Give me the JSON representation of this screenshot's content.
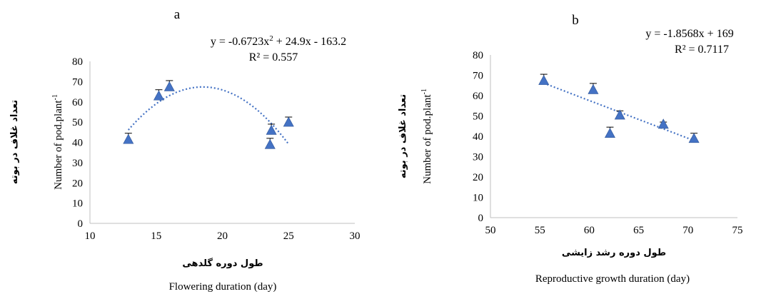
{
  "chart_data": [
    {
      "type": "scatter",
      "panel_label": "a",
      "equation": "y = -0.6723x",
      "equation_sup": "2",
      "equation_tail": " + 24.9x - 163.2",
      "r2": "R² = 0.557",
      "xlabel_fa": "طول دوره گلدهی",
      "xlabel": "Flowering duration (day)",
      "ylabel_fa": "تعداد غلاف در بوته",
      "ylabel": "Number of pod.plant",
      "ylabel_sup": "-1",
      "xlim": [
        10,
        30
      ],
      "ylim": [
        0,
        80
      ],
      "xticks": [
        "10",
        "15",
        "20",
        "25",
        "30"
      ],
      "yticks": [
        "0",
        "10",
        "20",
        "30",
        "40",
        "50",
        "60",
        "70",
        "80"
      ],
      "trendline": {
        "type": "polynomial",
        "a": -0.6723,
        "b": 24.9,
        "c": -163.2,
        "x_from": 12.9,
        "x_to": 25.0
      },
      "points": [
        {
          "x": 12.9,
          "y": 41.5,
          "err": 3
        },
        {
          "x": 15.2,
          "y": 63,
          "err": 3
        },
        {
          "x": 16.0,
          "y": 67.5,
          "err": 3
        },
        {
          "x": 23.6,
          "y": 39,
          "err": 3
        },
        {
          "x": 23.7,
          "y": 46,
          "err": 3
        },
        {
          "x": 25.0,
          "y": 50,
          "err": 2.5
        }
      ],
      "marker_color": "#4472C4",
      "trend_color": "#4472C4"
    },
    {
      "type": "scatter",
      "panel_label": "b",
      "equation": "y = -1.8568x + 169",
      "r2": "R² = 0.7117",
      "xlabel_fa": "طول دوره رشد زایشی",
      "xlabel": "Reproductive growth duration (day)",
      "ylabel_fa": "تعداد غلاف در بوته",
      "ylabel": "Number of pod.plant",
      "ylabel_sup": "-1",
      "xlim": [
        50,
        75
      ],
      "ylim": [
        0,
        80
      ],
      "xticks": [
        "50",
        "55",
        "60",
        "65",
        "70",
        "75"
      ],
      "yticks": [
        "0",
        "10",
        "20",
        "30",
        "40",
        "50",
        "60",
        "70",
        "80"
      ],
      "trendline": {
        "type": "linear",
        "m": -1.8568,
        "b": 169,
        "x_from": 55.4,
        "x_to": 70.6
      },
      "points": [
        {
          "x": 55.4,
          "y": 67.5,
          "err": 3
        },
        {
          "x": 60.4,
          "y": 63,
          "err": 3
        },
        {
          "x": 62.1,
          "y": 41.5,
          "err": 3
        },
        {
          "x": 63.1,
          "y": 50.5,
          "err": 2
        },
        {
          "x": 67.5,
          "y": 46,
          "err": 1
        },
        {
          "x": 70.6,
          "y": 39,
          "err": 2.5
        }
      ],
      "marker_color": "#4472C4",
      "trend_color": "#4472C4"
    }
  ]
}
